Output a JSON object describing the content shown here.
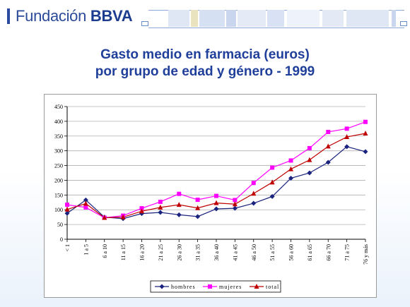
{
  "header": {
    "brand_light": "Fundación ",
    "brand_bold": "BBVA"
  },
  "slide": {
    "title_line1": "Gasto medio en farmacia (euros)",
    "title_line2": "por grupo de edad y género - 1999"
  },
  "chart_data": {
    "type": "line",
    "title": "",
    "xlabel": "",
    "ylabel": "",
    "ylim": [
      0,
      450
    ],
    "yticks": [
      0,
      50,
      100,
      150,
      200,
      250,
      300,
      350,
      400,
      450
    ],
    "grid": "horizontal",
    "legend_position": "bottom",
    "categories": [
      "< 1",
      "1 a 5",
      "6 a 10",
      "11 a 15",
      "16 a 20",
      "21 a 25",
      "26 a 30",
      "31 a 35",
      "36 a 40",
      "41 a 45",
      "46 a 50",
      "51 a 55",
      "56 a 60",
      "61 a 65",
      "66 a 70",
      "71 a 75",
      "76 y más"
    ],
    "series": [
      {
        "name": "hombres",
        "color": "#1a237e",
        "marker": "diamond",
        "values": [
          88,
          133,
          75,
          70,
          87,
          91,
          83,
          77,
          103,
          105,
          122,
          145,
          207,
          225,
          261,
          314,
          297
        ]
      },
      {
        "name": "mujeres",
        "color": "#ff00ff",
        "marker": "square",
        "values": [
          117,
          108,
          73,
          80,
          105,
          127,
          154,
          134,
          147,
          133,
          191,
          243,
          267,
          309,
          364,
          375,
          398
        ]
      },
      {
        "name": "total",
        "color": "#c00000",
        "marker": "triangle",
        "values": [
          101,
          121,
          73,
          75,
          95,
          108,
          117,
          106,
          123,
          119,
          155,
          193,
          238,
          269,
          315,
          347,
          359
        ]
      }
    ]
  }
}
